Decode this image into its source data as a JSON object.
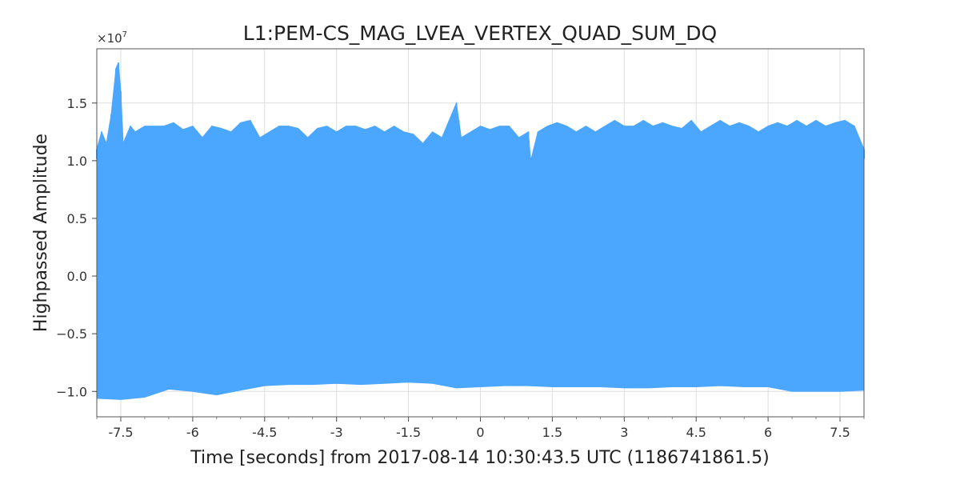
{
  "chart_data": {
    "type": "area",
    "title": "L1:PEM-CS_MAG_LVEA_VERTEX_QUAD_SUM_DQ",
    "xlabel": "Time [seconds] from 2017-08-14 10:30:43.5 UTC (1186741861.5)",
    "ylabel": "Highpassed Amplitude",
    "y_multiplier": "×10",
    "y_multiplier_exp": "7",
    "xlim": [
      -8,
      8
    ],
    "ylim": [
      -12200000.0,
      19700000.0
    ],
    "x_ticks": [
      -7.5,
      -6,
      -4.5,
      -3,
      -1.5,
      0,
      1.5,
      3,
      4.5,
      6,
      7.5
    ],
    "x_tick_labels": [
      "-7.5",
      "-6",
      "-4.5",
      "-3",
      "-1.5",
      "0",
      "1.5",
      "3",
      "4.5",
      "6",
      "7.5"
    ],
    "y_ticks": [
      -10000000.0,
      -5000000.0,
      0,
      5000000.0,
      10000000.0,
      15000000.0
    ],
    "y_tick_labels": [
      "−1.0",
      "−0.5",
      "0.0",
      "0.5",
      "1.0",
      "1.5"
    ],
    "grid": true,
    "color": "#4ba6fe",
    "series": [
      {
        "upper_envelope": {
          "x": [
            -8.0,
            -7.9,
            -7.8,
            -7.7,
            -7.6,
            -7.55,
            -7.5,
            -7.45,
            -7.4,
            -7.3,
            -7.2,
            -7.0,
            -6.8,
            -6.6,
            -6.4,
            -6.2,
            -6.0,
            -5.8,
            -5.6,
            -5.4,
            -5.2,
            -5.0,
            -4.8,
            -4.6,
            -4.4,
            -4.2,
            -4.0,
            -3.8,
            -3.6,
            -3.4,
            -3.2,
            -3.0,
            -2.8,
            -2.6,
            -2.4,
            -2.2,
            -2.0,
            -1.8,
            -1.6,
            -1.4,
            -1.2,
            -1.0,
            -0.8,
            -0.6,
            -0.5,
            -0.45,
            -0.4,
            -0.2,
            0.0,
            0.2,
            0.4,
            0.6,
            0.8,
            1.0,
            1.05,
            1.2,
            1.4,
            1.6,
            1.8,
            2.0,
            2.2,
            2.4,
            2.6,
            2.8,
            3.0,
            3.2,
            3.4,
            3.6,
            3.8,
            4.0,
            4.2,
            4.4,
            4.6,
            4.8,
            5.0,
            5.2,
            5.4,
            5.6,
            5.8,
            6.0,
            6.2,
            6.4,
            6.6,
            6.8,
            7.0,
            7.2,
            7.4,
            7.6,
            7.8,
            8.0
          ],
          "y": [
            11000000.0,
            12500000.0,
            11500000.0,
            14000000.0,
            18000000.0,
            18500000.0,
            16000000.0,
            11500000.0,
            12000000.0,
            13000000.0,
            12500000.0,
            13000000.0,
            13000000.0,
            13000000.0,
            13300000.0,
            12700000.0,
            13000000.0,
            12000000.0,
            13000000.0,
            12800000.0,
            12500000.0,
            13300000.0,
            13500000.0,
            12000000.0,
            12500000.0,
            13000000.0,
            13000000.0,
            12800000.0,
            12000000.0,
            12800000.0,
            13000000.0,
            12500000.0,
            13000000.0,
            13000000.0,
            12700000.0,
            13000000.0,
            12500000.0,
            13000000.0,
            12500000.0,
            12300000.0,
            11500000.0,
            12500000.0,
            12000000.0,
            14000000.0,
            15000000.0,
            13500000.0,
            12000000.0,
            12500000.0,
            13000000.0,
            12700000.0,
            13000000.0,
            13000000.0,
            12000000.0,
            12500000.0,
            10000000.0,
            12500000.0,
            13000000.0,
            13300000.0,
            13000000.0,
            12500000.0,
            13000000.0,
            12500000.0,
            13000000.0,
            13500000.0,
            13000000.0,
            13000000.0,
            13500000.0,
            13000000.0,
            13300000.0,
            13000000.0,
            12800000.0,
            13500000.0,
            12500000.0,
            13000000.0,
            13500000.0,
            13000000.0,
            13300000.0,
            13000000.0,
            12500000.0,
            13000000.0,
            13300000.0,
            13000000.0,
            13500000.0,
            13000000.0,
            13500000.0,
            13000000.0,
            13300000.0,
            13500000.0,
            13000000.0,
            11000000.0
          ]
        },
        "lower_envelope": {
          "x": [
            -8.0,
            -7.5,
            -7.0,
            -6.5,
            -6.0,
            -5.5,
            -5.0,
            -4.5,
            -4.0,
            -3.5,
            -3.0,
            -2.5,
            -2.0,
            -1.5,
            -1.0,
            -0.5,
            0.0,
            0.5,
            1.0,
            1.5,
            2.0,
            2.5,
            3.0,
            3.5,
            4.0,
            4.5,
            5.0,
            5.5,
            6.0,
            6.5,
            7.0,
            7.5,
            8.0
          ],
          "y": [
            -10600000.0,
            -10700000.0,
            -10500000.0,
            -9800000.0,
            -10000000.0,
            -10300000.0,
            -9900000.0,
            -9500000.0,
            -9400000.0,
            -9400000.0,
            -9300000.0,
            -9400000.0,
            -9300000.0,
            -9200000.0,
            -9300000.0,
            -9700000.0,
            -9600000.0,
            -9500000.0,
            -9500000.0,
            -9600000.0,
            -9600000.0,
            -9600000.0,
            -9700000.0,
            -9700000.0,
            -9600000.0,
            -9600000.0,
            -9500000.0,
            -9600000.0,
            -9600000.0,
            -10000000.0,
            -10000000.0,
            -10000000.0,
            -9900000.0
          ]
        }
      }
    ]
  }
}
